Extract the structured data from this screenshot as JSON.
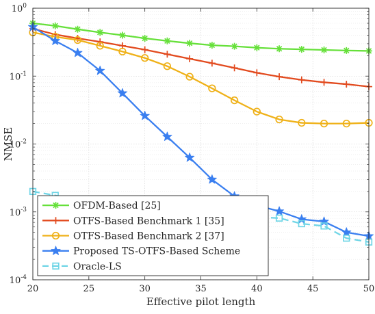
{
  "chart_data": {
    "type": "line",
    "title": "",
    "xlabel": "Effective pilot length",
    "ylabel": "NMSE",
    "xlim": [
      20,
      50
    ],
    "ylim": [
      0.0001,
      1
    ],
    "yscale": "log",
    "grid": true,
    "legend_position": "bottom-left",
    "x_ticks": [
      20,
      25,
      30,
      35,
      40,
      45,
      50
    ],
    "y_ticks": [
      {
        "value": 0.0001,
        "mantissa": "10",
        "exp": "-4"
      },
      {
        "value": 0.001,
        "mantissa": "10",
        "exp": "-3"
      },
      {
        "value": 0.01,
        "mantissa": "10",
        "exp": "-2"
      },
      {
        "value": 0.1,
        "mantissa": "10",
        "exp": "-1"
      },
      {
        "value": 1,
        "mantissa": "10",
        "exp": "0"
      }
    ],
    "series": [
      {
        "name": "OFDM-Based [25]",
        "color": "#66e03a",
        "marker": "asterisk",
        "dashed": false,
        "x": [
          20,
          22,
          24,
          26,
          28,
          30,
          32,
          34,
          36,
          38,
          40,
          42,
          44,
          46,
          48,
          50
        ],
        "y": [
          0.6,
          0.55,
          0.49,
          0.44,
          0.4,
          0.36,
          0.33,
          0.305,
          0.285,
          0.275,
          0.262,
          0.253,
          0.248,
          0.243,
          0.238,
          0.235
        ]
      },
      {
        "name": "OTFS-Based Benchmark 1 [35]",
        "color": "#e24a1e",
        "marker": "plus",
        "dashed": false,
        "x": [
          20,
          22,
          24,
          26,
          28,
          30,
          32,
          34,
          36,
          38,
          40,
          42,
          44,
          46,
          48,
          50
        ],
        "y": [
          0.5,
          0.41,
          0.36,
          0.32,
          0.28,
          0.245,
          0.21,
          0.18,
          0.155,
          0.132,
          0.112,
          0.098,
          0.088,
          0.081,
          0.076,
          0.07
        ]
      },
      {
        "name": "OTFS-Based Benchmark 2 [37]",
        "color": "#efb118",
        "marker": "circle",
        "dashed": false,
        "x": [
          20,
          22,
          24,
          26,
          28,
          30,
          32,
          34,
          36,
          38,
          40,
          42,
          44,
          46,
          48,
          50
        ],
        "y": [
          0.44,
          0.38,
          0.34,
          0.28,
          0.23,
          0.185,
          0.14,
          0.098,
          0.066,
          0.044,
          0.03,
          0.023,
          0.0205,
          0.02,
          0.02,
          0.0205
        ]
      },
      {
        "name": "Proposed TS-OTFS-Based Scheme",
        "color": "#3a7ff0",
        "marker": "star",
        "dashed": false,
        "x": [
          20,
          22,
          24,
          26,
          28,
          30,
          32,
          34,
          36,
          38,
          40,
          42,
          44,
          46,
          48,
          50
        ],
        "y": [
          0.53,
          0.33,
          0.22,
          0.12,
          0.056,
          0.026,
          0.0128,
          0.0063,
          0.003,
          0.0017,
          0.00125,
          0.00102,
          0.00078,
          0.00072,
          0.0005,
          0.00044
        ]
      },
      {
        "name": "Oracle-LS",
        "color": "#6fd5e6",
        "marker": "square",
        "dashed": true,
        "x": [
          20,
          22,
          24,
          26,
          28,
          30,
          32,
          34,
          36,
          38,
          40,
          42,
          44,
          46,
          48,
          50
        ],
        "y": [
          0.002,
          0.00175,
          0.0015,
          0.00128,
          0.00112,
          0.00098,
          0.00082,
          0.00086,
          0.0008,
          0.00083,
          0.00084,
          0.00081,
          0.00067,
          0.00062,
          0.00041,
          0.00036
        ]
      }
    ]
  }
}
